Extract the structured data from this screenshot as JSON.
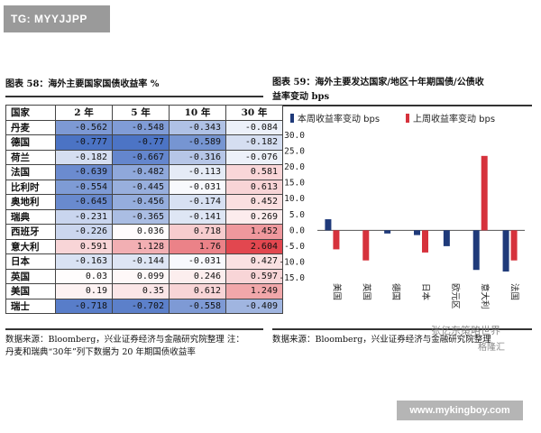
{
  "banner": "TG: MYYJJPP",
  "left": {
    "caption": "图表 58：海外主要国家国债收益率 %",
    "headers": [
      "国家",
      "2 年",
      "5 年",
      "10 年",
      "30 年"
    ],
    "rows": [
      {
        "country": "丹麦",
        "values": [
          "-0.562",
          "-0.548",
          "-0.343",
          "-0.084"
        ]
      },
      {
        "country": "德国",
        "values": [
          "-0.777",
          "-0.77",
          "-0.589",
          "-0.182"
        ]
      },
      {
        "country": "荷兰",
        "values": [
          "-0.182",
          "-0.667",
          "-0.316",
          "-0.076"
        ]
      },
      {
        "country": "法国",
        "values": [
          "-0.639",
          "-0.482",
          "-0.113",
          "0.581"
        ]
      },
      {
        "country": "比利时",
        "values": [
          "-0.554",
          "-0.445",
          "-0.031",
          "0.613"
        ]
      },
      {
        "country": "奥地利",
        "values": [
          "-0.645",
          "-0.456",
          "-0.174",
          "0.452"
        ]
      },
      {
        "country": "瑞典",
        "values": [
          "-0.231",
          "-0.365",
          "-0.141",
          "0.269"
        ]
      },
      {
        "country": "西班牙",
        "values": [
          "-0.226",
          "0.036",
          "0.718",
          "1.452"
        ]
      },
      {
        "country": "意大利",
        "values": [
          "0.591",
          "1.128",
          "1.76",
          "2.604"
        ]
      },
      {
        "country": "日本",
        "values": [
          "-0.163",
          "-0.144",
          "-0.031",
          "0.427"
        ]
      },
      {
        "country": "英国",
        "values": [
          "0.03",
          "0.099",
          "0.246",
          "0.597"
        ]
      },
      {
        "country": "美国",
        "values": [
          "0.19",
          "0.35",
          "0.612",
          "1.249"
        ]
      },
      {
        "country": "瑞士",
        "values": [
          "-0.718",
          "-0.702",
          "-0.558",
          "-0.409"
        ]
      }
    ],
    "note_line1": "数据来源：Bloomberg，兴业证券经济与金融研究院整理 注：",
    "note_line2": "丹麦和瑞典“30年”列下数据为 20 年期国债收益率"
  },
  "right": {
    "caption_line1": "图表 59：海外主要发达国家/地区十年期国债/公债收",
    "caption_line2": "益率变动 bps",
    "note": "数据来源：Bloomberg，兴业证券经济与金融研究院整理"
  },
  "colors": {
    "negative": "#4a72c4",
    "positive": "#e2474f",
    "series1": "#1f3a7a",
    "series2": "#d6323c"
  },
  "chart_data": {
    "type": "bar",
    "legend": [
      "本周收益率变动 bps",
      "上周收益率变动 bps"
    ],
    "categories": [
      "美国",
      "英国",
      "德国",
      "日本",
      "欧元区",
      "意大利",
      "法国"
    ],
    "series": [
      {
        "name": "本周收益率变动 bps",
        "values": [
          3.5,
          0,
          -1,
          -1.5,
          -5,
          -12.5,
          -13
        ]
      },
      {
        "name": "上周收益率变动 bps",
        "values": [
          -6,
          -9.5,
          0,
          -7,
          0,
          23.5,
          -9.5
        ]
      }
    ],
    "ylim": [
      -15,
      30
    ],
    "yticks": [
      "30.0",
      "25.0",
      "20.0",
      "15.0",
      "10.0",
      "5.0",
      "0.0",
      "-5.0",
      "-10.0",
      "-15.0"
    ],
    "legend_position": "top"
  },
  "watermark": "张亿东策略世界",
  "watermark_sub": "格隆汇",
  "footer": "www.mykingboy.com"
}
